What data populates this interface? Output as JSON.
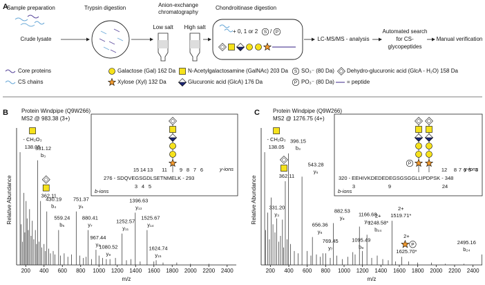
{
  "panel_a": {
    "label": "A",
    "steps": {
      "sample_preparation": "Sample preparation",
      "trypsin": "Trypsin digestion",
      "anion_exchange": [
        "Anion-exchange",
        "chromatography"
      ],
      "low_salt": "Low salt",
      "high_salt": "High salt",
      "chondroitinase": "Chondroitinase digestion",
      "crude_lysate": "Crude lysate",
      "options": "+ 0, 1 or 2",
      "sulfate": "S",
      "phosphate": "P",
      "lcms": "LC-MS/MS - analysis",
      "search": [
        "Automated search",
        "for CS-",
        "glycopeptides"
      ],
      "verification": "Manual verification"
    },
    "legend": [
      "Core proteins",
      "CS chains",
      "Galactose (Gal) 162 Da",
      "Xylose (Xyl) 132 Da",
      "N-Acetylgalactosamine (GalNAc) 203 Da",
      "Glucuronic acid (GlcA) 176 Da",
      "SO₃⁻ (80 Da)",
      "PO₃⁻ (80 Da)",
      "Dehydro-glucuronic acid (GlcA - H₂O) 158 Da",
      "= peptide"
    ]
  },
  "chart_data": [
    {
      "type": "spectrum",
      "panel": "B",
      "protein": "Protein Windpipe (Q9W266)",
      "precursor": "MS2 @ 983.38 (3+)",
      "x_label": "m/z",
      "y_label": "Relative Abundance",
      "xlim": [
        100,
        2500
      ],
      "xticks": [
        200,
        400,
        600,
        800,
        1000,
        1200,
        1400,
        1600,
        1800,
        2000,
        2200,
        2400
      ],
      "ylim": [
        0,
        100
      ],
      "color": "#222222",
      "loss_label": "- CH₂O₃",
      "peaks": {
        "x": [
          138.05,
          331.12,
          362.11,
          430.19,
          559.24,
          751.37,
          880.41,
          967.44,
          1080.52,
          1252.57,
          1396.63,
          1525.67,
          1624.74
        ],
        "values": [
          97,
          90,
          55,
          46,
          30,
          46,
          30,
          13,
          5,
          27,
          45,
          30,
          4
        ],
        "ions": [
          null,
          "b₃",
          null,
          "b₄",
          "b₅",
          "y₆",
          "y₇",
          "y₈",
          "y₉",
          "y₁₁",
          "y₁₃",
          "y₁₄",
          "y₁₅"
        ]
      },
      "background": {
        "x": [
          150,
          165,
          178,
          190,
          204,
          215,
          228,
          242,
          258,
          272,
          288,
          305,
          318,
          345,
          375,
          400,
          415,
          450,
          470,
          500,
          520,
          580,
          620,
          660,
          700,
          790,
          830,
          860,
          920,
          1000,
          1040,
          1120,
          1180,
          1300,
          1350,
          1450,
          1600,
          1700,
          1850,
          2000,
          2200
        ],
        "values": [
          35,
          20,
          62,
          28,
          55,
          40,
          30,
          48,
          25,
          38,
          22,
          30,
          18,
          20,
          15,
          18,
          12,
          14,
          10,
          12,
          9,
          8,
          10,
          7,
          9,
          8,
          6,
          7,
          5,
          8,
          6,
          5,
          6,
          4,
          5,
          3,
          3,
          2,
          2,
          1,
          1
        ]
      },
      "inset": {
        "sequence": "276 - SDQVEGSGDLSETNMELK - 293",
        "y_ions_label": "y-ions",
        "b_ions_label": "b-ions",
        "y_numbers": [
          "15",
          "14",
          "13",
          "11",
          "9",
          "8",
          "7",
          "6"
        ],
        "b_numbers": [
          "3",
          "4",
          "5"
        ]
      }
    },
    {
      "type": "spectrum",
      "panel": "C",
      "protein": "Protein Windpipe (Q9W266)",
      "precursor": "MS2 @ 1276.75 (4+)",
      "x_label": "m/z",
      "y_label": "Relative Abundance",
      "xlim": [
        100,
        2500
      ],
      "xticks": [
        200,
        400,
        600,
        800,
        1000,
        1200,
        1400,
        1600,
        1800,
        2000,
        2200,
        2400
      ],
      "ylim": [
        0,
        100
      ],
      "color": "#222222",
      "loss_label": "- CH₂O₃",
      "peaks": {
        "x": [
          138.05,
          331.2,
          362.11,
          396.15,
          543.28,
          656.36,
          769.45,
          882.53,
          1095.49,
          1166.68,
          1248.58,
          1519.71,
          1625.7,
          2495.16
        ],
        "values": [
          97,
          39,
          72,
          96,
          76,
          24,
          10,
          36,
          11,
          33,
          26,
          38,
          7,
          9
        ],
        "x_labels": [
          null,
          "331.20",
          null,
          null,
          null,
          null,
          null,
          null,
          null,
          null,
          "1248.58*",
          "1519.71*",
          "1625.70*",
          null
        ],
        "ions": [
          null,
          "y₃",
          null,
          "b₃",
          "y₅",
          "y₆",
          "y₇",
          "y₈",
          "b₉",
          "y₁₂",
          "b₂₄",
          null,
          null,
          "b₂₄"
        ],
        "charges": [
          null,
          null,
          null,
          null,
          null,
          null,
          null,
          null,
          null,
          null,
          "2+",
          "2+",
          "2+",
          null
        ]
      },
      "background": {
        "x": [
          150,
          172,
          190,
          210,
          228,
          250,
          270,
          290,
          310,
          345,
          380,
          420,
          460,
          500,
          600,
          640,
          700,
          740,
          800,
          850,
          920,
          980,
          1040,
          1120,
          1200,
          1300,
          1360,
          1420,
          1480,
          1560,
          1700,
          1800,
          1950,
          2100,
          2300
        ],
        "values": [
          30,
          45,
          22,
          58,
          35,
          28,
          40,
          20,
          25,
          15,
          22,
          18,
          12,
          10,
          12,
          8,
          9,
          7,
          10,
          6,
          8,
          5,
          7,
          9,
          12,
          6,
          8,
          5,
          4,
          3,
          3,
          2,
          2,
          1,
          1
        ]
      },
      "inset": {
        "sequence": "320 - EEHIVKDEDEDEGSGSGGLLIPDPSK - 348",
        "y_ions_label": "y-ions",
        "b_ions_label": "b-ions",
        "y_numbers": [
          "12",
          "8",
          "7",
          "6",
          "5",
          "3"
        ],
        "b_numbers": [
          "3",
          "9",
          "24"
        ]
      }
    }
  ]
}
